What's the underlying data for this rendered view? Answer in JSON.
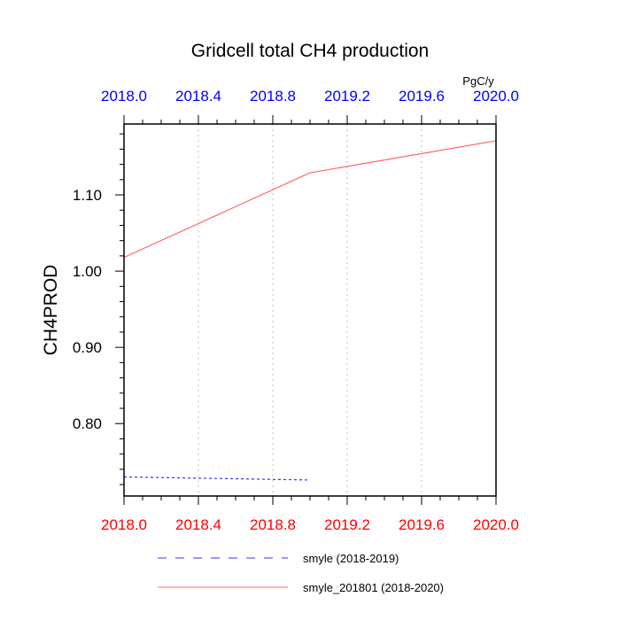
{
  "chart_data": {
    "type": "line",
    "title": "Gridcell total CH4 production",
    "ylabel": "CH4PROD",
    "units": "PgC/y",
    "xlim": [
      2018.0,
      2020.0
    ],
    "ylim": [
      0.705,
      1.193
    ],
    "x_ticks": [
      "2018.0",
      "2018.4",
      "2018.8",
      "2019.2",
      "2019.6",
      "2020.0"
    ],
    "x_tick_values": [
      2018.0,
      2018.4,
      2018.8,
      2019.2,
      2019.6,
      2020.0
    ],
    "y_ticks": [
      "0.80",
      "0.90",
      "1.00",
      "1.10"
    ],
    "y_tick_values": [
      0.8,
      0.9,
      1.0,
      1.1
    ],
    "grid": "vertical dotted",
    "legend_position": "bottom",
    "colors": {
      "bottom_axis": "#ff0000",
      "top_axis": "#0000ff",
      "series_1": "#3333ff",
      "series_2": "#ff6666"
    },
    "series": [
      {
        "name": "smyle (2018-2019)",
        "style": "dashed",
        "x": [
          2018.0,
          2019.0
        ],
        "y": [
          0.73,
          0.726
        ]
      },
      {
        "name": "smyle_201801 (2018-2020)",
        "style": "solid",
        "x": [
          2018.0,
          2019.0,
          2020.0
        ],
        "y": [
          1.018,
          1.129,
          1.171
        ]
      }
    ]
  }
}
